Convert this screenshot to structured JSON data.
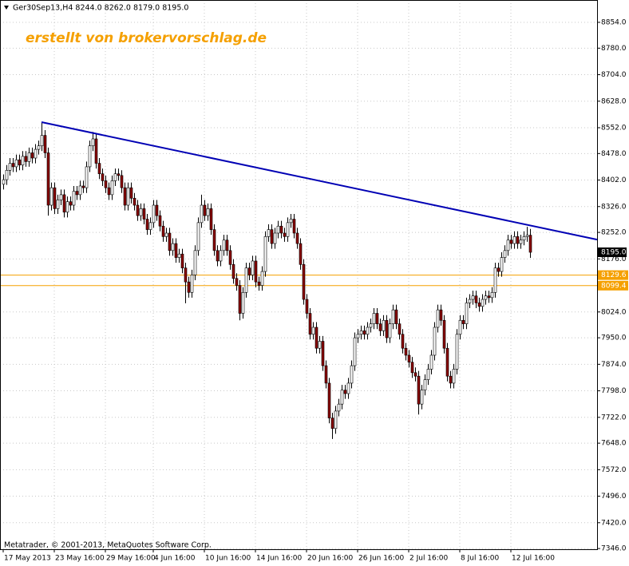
{
  "chart_data": {
    "type": "candlestick",
    "header": "Ger30Sep13,H4  8244.0 8262.0 8179.0 8195.0",
    "watermark": "erstellt von brokervorschlag.de",
    "footer": "Metatrader, © 2001-2013, MetaQuotes Software Corp.",
    "ylim": [
      7344,
      8918
    ],
    "yticks": [
      {
        "value": 8854,
        "label": "8854.0"
      },
      {
        "value": 8780,
        "label": "8780.0"
      },
      {
        "value": 8704,
        "label": "8704.0"
      },
      {
        "value": 8628,
        "label": "8628.0"
      },
      {
        "value": 8552,
        "label": "8552.0"
      },
      {
        "value": 8478,
        "label": "8478.0"
      },
      {
        "value": 8402,
        "label": "8402.0"
      },
      {
        "value": 8326,
        "label": "8326.0"
      },
      {
        "value": 8252,
        "label": "8252.0"
      },
      {
        "value": 8176,
        "label": "8176.0"
      },
      {
        "value": 8024,
        "label": "8024.0"
      },
      {
        "value": 7950,
        "label": "7950.0"
      },
      {
        "value": 7874,
        "label": "7874.0"
      },
      {
        "value": 7798,
        "label": "7798.0"
      },
      {
        "value": 7722,
        "label": "7722.0"
      },
      {
        "value": 7648,
        "label": "7648.0"
      },
      {
        "value": 7572,
        "label": "7572.0"
      },
      {
        "value": 7496,
        "label": "7496.0"
      },
      {
        "value": 7420,
        "label": "7420.0"
      },
      {
        "value": 7346,
        "label": "7346.0"
      }
    ],
    "grid": true,
    "colors": {
      "up": "#ffffff",
      "down": "#8b0000",
      "outline": "#000000",
      "trendline": "#0000b4",
      "levels": "#f5a000"
    },
    "current_price": {
      "value": 8195,
      "label": "8195.0"
    },
    "levels": [
      8129.6,
      8099.4
    ],
    "trendline": [
      [
        12,
        8568
      ],
      [
        165,
        8272
      ]
    ],
    "categories": [
      "17 May 2013",
      null,
      null,
      null,
      null,
      null,
      null,
      null,
      null,
      null,
      null,
      null,
      null,
      null,
      null,
      null,
      "23 May 16:00",
      null,
      null,
      null,
      null,
      null,
      null,
      null,
      null,
      null,
      null,
      null,
      null,
      null,
      null,
      null,
      "29 May 16:00",
      null,
      null,
      null,
      null,
      null,
      null,
      null,
      null,
      null,
      null,
      null,
      null,
      null,
      null,
      "4 Jun 16:00",
      null,
      null,
      null,
      null,
      null,
      null,
      null,
      null,
      null,
      null,
      null,
      null,
      null,
      null,
      null,
      "10 Jun 16:00",
      null,
      null,
      null,
      null,
      null,
      null,
      null,
      null,
      null,
      null,
      null,
      null,
      null,
      null,
      null,
      "14 Jun 16:00",
      null,
      null,
      null,
      null,
      null,
      null,
      null,
      null,
      null,
      null,
      null,
      null,
      null,
      null,
      null,
      "20 Jun 16:00",
      null,
      null,
      null,
      null,
      null,
      null,
      null,
      null,
      null,
      null,
      null,
      null,
      null,
      null,
      null,
      "26 Jun 16:00",
      null,
      null,
      null,
      null,
      null,
      null,
      null,
      null,
      null,
      null,
      null,
      null,
      null,
      null,
      null,
      "2 Jul 16:00",
      null,
      null,
      null,
      null,
      null,
      null,
      null,
      null,
      null,
      null,
      null,
      null,
      null,
      null,
      null,
      "8 Jul 16:00",
      null,
      null,
      null,
      null,
      null,
      null,
      null,
      null,
      null,
      null,
      null,
      null,
      null,
      null,
      null,
      "12 Jul 16:00",
      null,
      null,
      null,
      null,
      null,
      null
    ],
    "ohlc": [
      [
        8390,
        8418,
        8375,
        8403
      ],
      [
        8403,
        8445,
        8388,
        8430
      ],
      [
        8430,
        8465,
        8415,
        8450
      ],
      [
        8450,
        8465,
        8425,
        8440
      ],
      [
        8440,
        8475,
        8425,
        8460
      ],
      [
        8460,
        8475,
        8430,
        8445
      ],
      [
        8445,
        8485,
        8430,
        8470
      ],
      [
        8470,
        8485,
        8440,
        8455
      ],
      [
        8455,
        8495,
        8440,
        8480
      ],
      [
        8480,
        8495,
        8450,
        8465
      ],
      [
        8465,
        8505,
        8450,
        8490
      ],
      [
        8490,
        8515,
        8475,
        8500
      ],
      [
        8500,
        8568,
        8485,
        8530
      ],
      [
        8530,
        8545,
        8465,
        8480
      ],
      [
        8480,
        8495,
        8300,
        8330
      ],
      [
        8330,
        8395,
        8315,
        8380
      ],
      [
        8380,
        8395,
        8305,
        8320
      ],
      [
        8320,
        8360,
        8305,
        8345
      ],
      [
        8345,
        8375,
        8330,
        8360
      ],
      [
        8360,
        8375,
        8295,
        8310
      ],
      [
        8310,
        8355,
        8295,
        8340
      ],
      [
        8340,
        8355,
        8315,
        8330
      ],
      [
        8330,
        8385,
        8315,
        8370
      ],
      [
        8370,
        8385,
        8345,
        8360
      ],
      [
        8360,
        8400,
        8345,
        8385
      ],
      [
        8385,
        8400,
        8365,
        8380
      ],
      [
        8380,
        8455,
        8365,
        8440
      ],
      [
        8440,
        8515,
        8425,
        8500
      ],
      [
        8500,
        8540,
        8485,
        8520
      ],
      [
        8520,
        8535,
        8435,
        8450
      ],
      [
        8450,
        8465,
        8405,
        8420
      ],
      [
        8420,
        8435,
        8385,
        8400
      ],
      [
        8400,
        8415,
        8365,
        8380
      ],
      [
        8380,
        8395,
        8345,
        8360
      ],
      [
        8360,
        8415,
        8345,
        8400
      ],
      [
        8400,
        8435,
        8385,
        8420
      ],
      [
        8420,
        8435,
        8400,
        8415
      ],
      [
        8415,
        8430,
        8365,
        8380
      ],
      [
        8380,
        8395,
        8315,
        8330
      ],
      [
        8330,
        8395,
        8315,
        8380
      ],
      [
        8380,
        8395,
        8335,
        8350
      ],
      [
        8350,
        8365,
        8315,
        8330
      ],
      [
        8330,
        8345,
        8285,
        8300
      ],
      [
        8300,
        8335,
        8285,
        8320
      ],
      [
        8320,
        8335,
        8275,
        8290
      ],
      [
        8290,
        8305,
        8245,
        8260
      ],
      [
        8260,
        8295,
        8245,
        8280
      ],
      [
        8280,
        8345,
        8265,
        8330
      ],
      [
        8330,
        8345,
        8285,
        8300
      ],
      [
        8300,
        8315,
        8255,
        8270
      ],
      [
        8270,
        8285,
        8225,
        8240
      ],
      [
        8240,
        8265,
        8225,
        8250
      ],
      [
        8250,
        8265,
        8185,
        8200
      ],
      [
        8200,
        8235,
        8185,
        8220
      ],
      [
        8220,
        8235,
        8165,
        8180
      ],
      [
        8180,
        8205,
        8165,
        8190
      ],
      [
        8190,
        8205,
        8135,
        8150
      ],
      [
        8150,
        8165,
        8049,
        8110
      ],
      [
        8110,
        8125,
        8065,
        8080
      ],
      [
        8080,
        8145,
        8065,
        8130
      ],
      [
        8130,
        8215,
        8115,
        8200
      ],
      [
        8200,
        8295,
        8185,
        8280
      ],
      [
        8280,
        8360,
        8265,
        8330
      ],
      [
        8330,
        8345,
        8285,
        8300
      ],
      [
        8300,
        8335,
        8285,
        8320
      ],
      [
        8320,
        8335,
        8245,
        8260
      ],
      [
        8260,
        8275,
        8185,
        8200
      ],
      [
        8200,
        8215,
        8155,
        8170
      ],
      [
        8170,
        8215,
        8155,
        8200
      ],
      [
        8200,
        8245,
        8185,
        8230
      ],
      [
        8230,
        8245,
        8185,
        8200
      ],
      [
        8200,
        8215,
        8145,
        8160
      ],
      [
        8160,
        8175,
        8105,
        8120
      ],
      [
        8120,
        8135,
        8085,
        8100
      ],
      [
        8100,
        8115,
        8000,
        8020
      ],
      [
        8020,
        8095,
        8005,
        8080
      ],
      [
        8080,
        8165,
        8065,
        8150
      ],
      [
        8150,
        8165,
        8115,
        8130
      ],
      [
        8130,
        8185,
        8115,
        8170
      ],
      [
        8170,
        8185,
        8095,
        8110
      ],
      [
        8110,
        8125,
        8085,
        8100
      ],
      [
        8100,
        8155,
        8085,
        8140
      ],
      [
        8140,
        8255,
        8125,
        8240
      ],
      [
        8240,
        8275,
        8225,
        8260
      ],
      [
        8260,
        8275,
        8205,
        8220
      ],
      [
        8220,
        8265,
        8205,
        8250
      ],
      [
        8250,
        8285,
        8235,
        8270
      ],
      [
        8270,
        8285,
        8235,
        8250
      ],
      [
        8250,
        8265,
        8225,
        8240
      ],
      [
        8240,
        8295,
        8225,
        8280
      ],
      [
        8280,
        8305,
        8265,
        8290
      ],
      [
        8290,
        8305,
        8235,
        8250
      ],
      [
        8250,
        8265,
        8205,
        8220
      ],
      [
        8220,
        8235,
        8145,
        8160
      ],
      [
        8160,
        8175,
        8045,
        8060
      ],
      [
        8060,
        8075,
        8005,
        8020
      ],
      [
        8020,
        8035,
        7945,
        7960
      ],
      [
        7960,
        7995,
        7945,
        7980
      ],
      [
        7980,
        7995,
        7905,
        7920
      ],
      [
        7920,
        7955,
        7905,
        7940
      ],
      [
        7940,
        7955,
        7855,
        7870
      ],
      [
        7870,
        7885,
        7805,
        7820
      ],
      [
        7820,
        7835,
        7705,
        7720
      ],
      [
        7720,
        7735,
        7660,
        7690
      ],
      [
        7690,
        7755,
        7675,
        7740
      ],
      [
        7740,
        7775,
        7725,
        7760
      ],
      [
        7760,
        7815,
        7745,
        7800
      ],
      [
        7800,
        7815,
        7775,
        7790
      ],
      [
        7790,
        7835,
        7775,
        7820
      ],
      [
        7820,
        7885,
        7805,
        7870
      ],
      [
        7870,
        7965,
        7855,
        7950
      ],
      [
        7950,
        7975,
        7935,
        7960
      ],
      [
        7960,
        7985,
        7945,
        7970
      ],
      [
        7970,
        7985,
        7945,
        7960
      ],
      [
        7960,
        7995,
        7945,
        7980
      ],
      [
        7980,
        8005,
        7965,
        7990
      ],
      [
        7990,
        8035,
        7975,
        8020
      ],
      [
        8020,
        8035,
        7975,
        7990
      ],
      [
        7990,
        8005,
        7955,
        7970
      ],
      [
        7970,
        8015,
        7955,
        8000
      ],
      [
        8000,
        8015,
        7935,
        7950
      ],
      [
        7950,
        8005,
        7935,
        7990
      ],
      [
        7990,
        8045,
        7975,
        8030
      ],
      [
        8030,
        8045,
        7975,
        7990
      ],
      [
        7990,
        8005,
        7945,
        7960
      ],
      [
        7960,
        7975,
        7905,
        7920
      ],
      [
        7920,
        7935,
        7885,
        7900
      ],
      [
        7900,
        7915,
        7865,
        7880
      ],
      [
        7880,
        7895,
        7835,
        7850
      ],
      [
        7850,
        7865,
        7825,
        7840
      ],
      [
        7840,
        7855,
        7730,
        7760
      ],
      [
        7760,
        7815,
        7745,
        7800
      ],
      [
        7800,
        7845,
        7785,
        7830
      ],
      [
        7830,
        7875,
        7815,
        7860
      ],
      [
        7860,
        7915,
        7845,
        7900
      ],
      [
        7900,
        7995,
        7885,
        7980
      ],
      [
        7980,
        8045,
        7965,
        8030
      ],
      [
        8030,
        8045,
        7985,
        8000
      ],
      [
        8000,
        8015,
        7905,
        7920
      ],
      [
        7920,
        7935,
        7825,
        7840
      ],
      [
        7840,
        7855,
        7805,
        7820
      ],
      [
        7820,
        7875,
        7805,
        7860
      ],
      [
        7860,
        7975,
        7845,
        7960
      ],
      [
        7960,
        8015,
        7945,
        8000
      ],
      [
        8000,
        8015,
        7975,
        7990
      ],
      [
        7990,
        8065,
        7975,
        8050
      ],
      [
        8050,
        8075,
        8035,
        8060
      ],
      [
        8060,
        8085,
        8045,
        8070
      ],
      [
        8070,
        8085,
        8035,
        8050
      ],
      [
        8050,
        8065,
        8025,
        8040
      ],
      [
        8040,
        8075,
        8025,
        8060
      ],
      [
        8060,
        8085,
        8045,
        8070
      ],
      [
        8070,
        8085,
        8050,
        8065
      ],
      [
        8065,
        8095,
        8050,
        8080
      ],
      [
        8080,
        8165,
        8065,
        8150
      ],
      [
        8150,
        8165,
        8125,
        8140
      ],
      [
        8140,
        8195,
        8125,
        8180
      ],
      [
        8180,
        8215,
        8165,
        8200
      ],
      [
        8200,
        8245,
        8185,
        8230
      ],
      [
        8230,
        8245,
        8205,
        8220
      ],
      [
        8220,
        8255,
        8205,
        8240
      ],
      [
        8240,
        8255,
        8205,
        8220
      ],
      [
        8220,
        8245,
        8205,
        8230
      ],
      [
        8230,
        8255,
        8215,
        8240
      ],
      [
        8240,
        8268,
        8225,
        8244
      ],
      [
        8244,
        8262,
        8179,
        8195
      ]
    ]
  }
}
